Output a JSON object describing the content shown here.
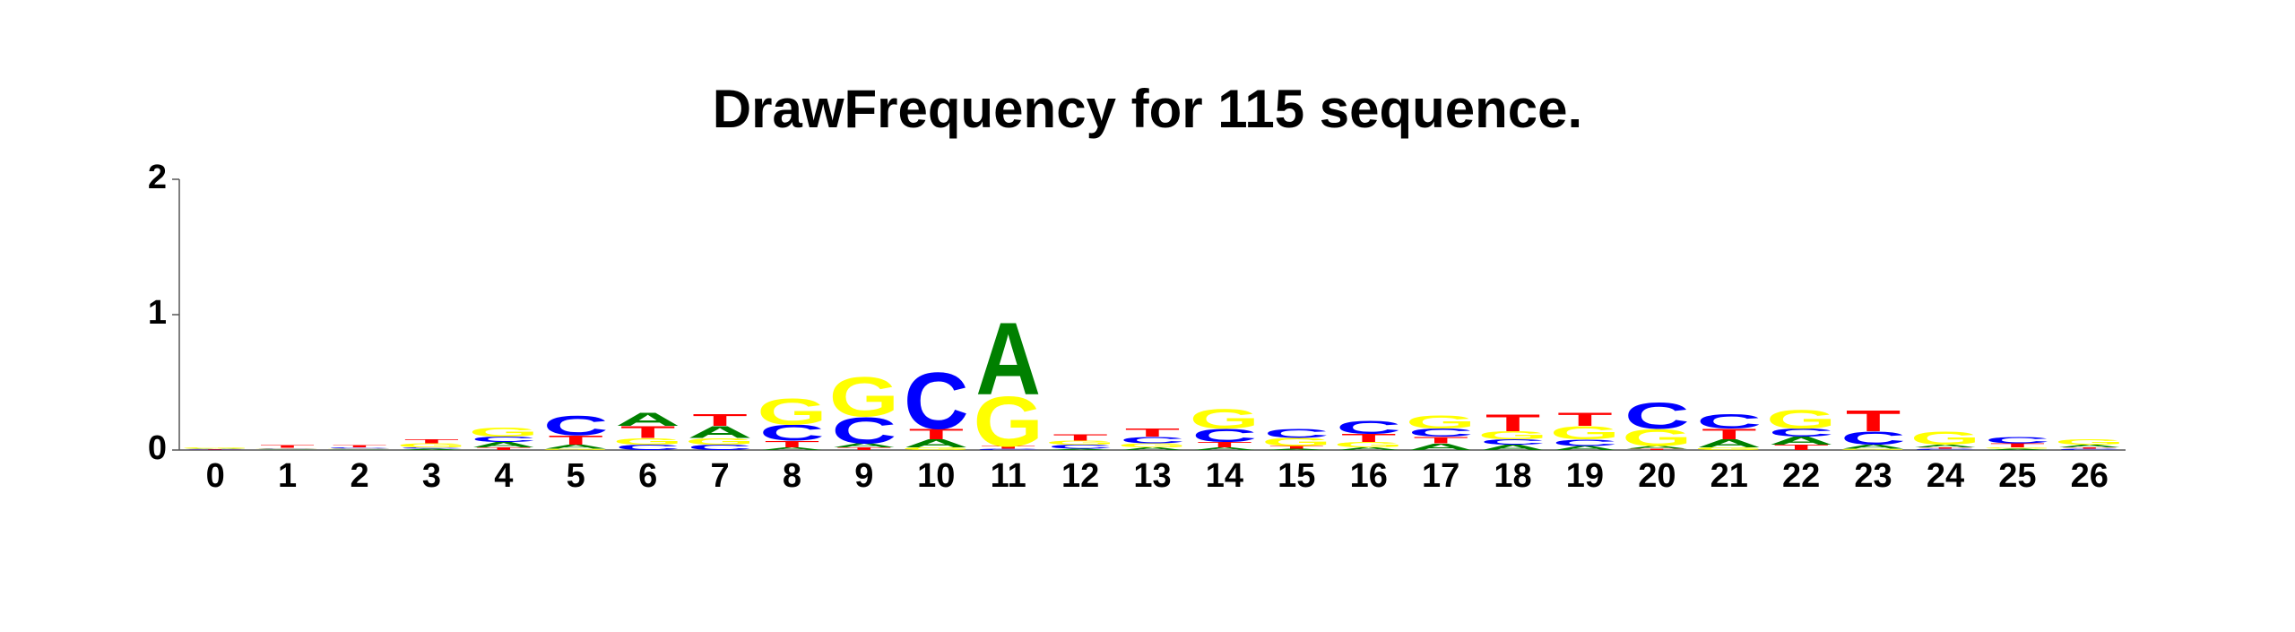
{
  "chart_data": {
    "type": "logo",
    "title": "DrawFrequency for 115 sequence.",
    "categories": [
      "0",
      "1",
      "2",
      "3",
      "4",
      "5",
      "6",
      "7",
      "8",
      "9",
      "10",
      "11",
      "12",
      "13",
      "14",
      "15",
      "16",
      "17",
      "18",
      "19",
      "20",
      "21",
      "22",
      "23",
      "24",
      "25",
      "26"
    ],
    "series": [
      {
        "name": "A",
        "color": "#008000",
        "values": [
          0.005,
          0.005,
          0.005,
          0.01,
          0.04,
          0.03,
          0.1,
          0.09,
          0.02,
          0.03,
          0.06,
          0.55,
          0.01,
          0.02,
          0.02,
          0.01,
          0.02,
          0.05,
          0.04,
          0.03,
          0.02,
          0.06,
          0.06,
          0.03,
          0.02,
          0.01,
          0.02
        ]
      },
      {
        "name": "C",
        "color": "#0000ff",
        "values": [
          0.002,
          0.005,
          0.01,
          0.01,
          0.04,
          0.15,
          0.04,
          0.04,
          0.12,
          0.2,
          0.43,
          0.01,
          0.03,
          0.05,
          0.1,
          0.07,
          0.1,
          0.06,
          0.04,
          0.05,
          0.2,
          0.11,
          0.06,
          0.1,
          0.01,
          0.05,
          0.01
        ]
      },
      {
        "name": "G",
        "color": "#ffff00",
        "values": [
          0.01,
          0.005,
          0.005,
          0.03,
          0.07,
          0.01,
          0.05,
          0.05,
          0.2,
          0.3,
          0.02,
          0.38,
          0.03,
          0.03,
          0.15,
          0.06,
          0.04,
          0.1,
          0.06,
          0.1,
          0.13,
          0.02,
          0.14,
          0.01,
          0.1,
          0.01,
          0.04
        ]
      },
      {
        "name": "T",
        "color": "#ff0000",
        "values": [
          0.003,
          0.02,
          0.015,
          0.03,
          0.02,
          0.07,
          0.09,
          0.09,
          0.05,
          0.02,
          0.08,
          0.02,
          0.05,
          0.06,
          0.04,
          0.02,
          0.06,
          0.05,
          0.13,
          0.1,
          0.01,
          0.08,
          0.04,
          0.16,
          0.01,
          0.03,
          0.01
        ]
      }
    ],
    "ylim": [
      0,
      2
    ],
    "yticks": [
      0,
      1,
      2
    ]
  }
}
